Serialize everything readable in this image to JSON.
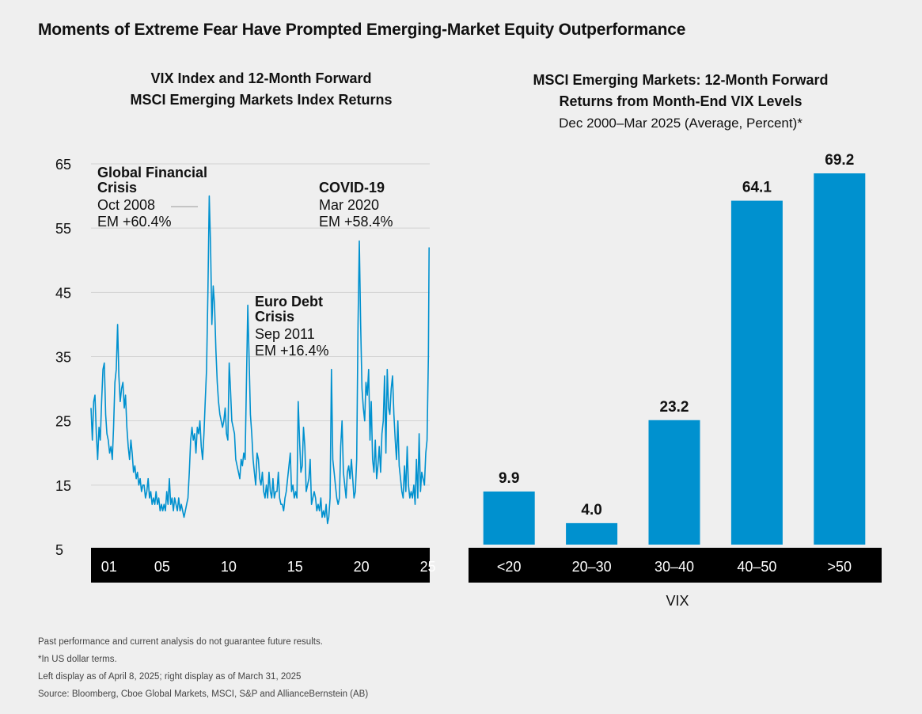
{
  "title": "Moments of Extreme Fear Have Prompted Emerging-Market Equity Outperformance",
  "left_panel": {
    "title_line1": "VIX Index and 12-Month Forward",
    "title_line2": "MSCI Emerging Markets Index Returns"
  },
  "right_panel": {
    "title_line1": "MSCI Emerging Markets: 12-Month Forward",
    "title_line2": "Returns from Month-End VIX Levels",
    "subtitle": "Dec 2000–Mar 2025 (Average, Percent)*"
  },
  "footnotes": [
    "Past performance and current analysis do not guarantee future results.",
    "*In US dollar terms.",
    "Left display as of April 8, 2025; right display as of March 31, 2025",
    "Source: Bloomberg, Cboe Global Markets, MSCI, S&P and AllianceBernstein (AB)"
  ],
  "colors": {
    "series": "#0091cf",
    "axis_band": "#000000",
    "background": "#efefef"
  },
  "chart_data": [
    {
      "type": "line",
      "series": [
        {
          "name": ""
        }
      ],
      "ylim": [
        5,
        65
      ],
      "yticks": [
        "65",
        "55",
        "45",
        "35",
        "25",
        "15",
        "5"
      ],
      "xlim": [
        2000.0,
        2025.5
      ],
      "xticks": [
        {
          "label": "01",
          "value": 2001
        },
        {
          "label": "05",
          "value": 2005
        },
        {
          "label": "10",
          "value": 2010
        },
        {
          "label": "15",
          "value": 2015
        },
        {
          "label": "20",
          "value": 2020
        },
        {
          "label": "25",
          "value": 2025
        }
      ],
      "grid": true,
      "annotations": [
        {
          "title_lines": [
            "Global Financial",
            "Crisis"
          ],
          "date": "Oct 2008",
          "value": "EM +60.4%"
        },
        {
          "title_lines": [
            "COVID-19"
          ],
          "date": "Mar 2020",
          "value": "EM +58.4%"
        },
        {
          "title_lines": [
            "Euro Debt",
            "Crisis"
          ],
          "date": "Sep 2011",
          "value": "EM +16.4%"
        }
      ],
      "points": [
        [
          2000.0,
          27
        ],
        [
          2000.1,
          22
        ],
        [
          2000.2,
          28
        ],
        [
          2000.3,
          29
        ],
        [
          2000.4,
          23
        ],
        [
          2000.5,
          19
        ],
        [
          2000.6,
          24
        ],
        [
          2000.7,
          22
        ],
        [
          2000.8,
          28
        ],
        [
          2000.9,
          33
        ],
        [
          2001.0,
          34
        ],
        [
          2001.1,
          26
        ],
        [
          2001.2,
          23
        ],
        [
          2001.3,
          22
        ],
        [
          2001.4,
          20
        ],
        [
          2001.5,
          21
        ],
        [
          2001.6,
          19
        ],
        [
          2001.7,
          24
        ],
        [
          2001.8,
          31
        ],
        [
          2001.9,
          33
        ],
        [
          2002.0,
          40
        ],
        [
          2002.1,
          32
        ],
        [
          2002.2,
          28
        ],
        [
          2002.3,
          30
        ],
        [
          2002.4,
          31
        ],
        [
          2002.5,
          27
        ],
        [
          2002.6,
          29
        ],
        [
          2002.7,
          24
        ],
        [
          2002.8,
          21
        ],
        [
          2002.9,
          19
        ],
        [
          2003.0,
          22
        ],
        [
          2003.1,
          20
        ],
        [
          2003.2,
          17
        ],
        [
          2003.3,
          18
        ],
        [
          2003.4,
          16
        ],
        [
          2003.5,
          17
        ],
        [
          2003.6,
          15
        ],
        [
          2003.7,
          16
        ],
        [
          2003.8,
          14
        ],
        [
          2003.9,
          15
        ],
        [
          2004.0,
          15
        ],
        [
          2004.1,
          13
        ],
        [
          2004.2,
          14
        ],
        [
          2004.3,
          16
        ],
        [
          2004.4,
          13
        ],
        [
          2004.5,
          14
        ],
        [
          2004.6,
          12
        ],
        [
          2004.7,
          13
        ],
        [
          2004.8,
          12
        ],
        [
          2004.9,
          14
        ],
        [
          2005.0,
          12
        ],
        [
          2005.1,
          13
        ],
        [
          2005.2,
          11
        ],
        [
          2005.3,
          12
        ],
        [
          2005.4,
          11
        ],
        [
          2005.5,
          12
        ],
        [
          2005.6,
          11
        ],
        [
          2005.7,
          14
        ],
        [
          2005.8,
          12
        ],
        [
          2005.9,
          16
        ],
        [
          2006.0,
          12
        ],
        [
          2006.1,
          13
        ],
        [
          2006.2,
          11
        ],
        [
          2006.3,
          13
        ],
        [
          2006.4,
          12
        ],
        [
          2006.5,
          11
        ],
        [
          2006.6,
          13
        ],
        [
          2006.7,
          11
        ],
        [
          2006.8,
          12
        ],
        [
          2006.9,
          11
        ],
        [
          2007.0,
          10
        ],
        [
          2007.1,
          11
        ],
        [
          2007.2,
          12
        ],
        [
          2007.3,
          13
        ],
        [
          2007.4,
          17
        ],
        [
          2007.5,
          22
        ],
        [
          2007.6,
          24
        ],
        [
          2007.7,
          22
        ],
        [
          2007.8,
          23
        ],
        [
          2007.9,
          20
        ],
        [
          2008.0,
          24
        ],
        [
          2008.1,
          23
        ],
        [
          2008.2,
          25
        ],
        [
          2008.3,
          21
        ],
        [
          2008.4,
          19
        ],
        [
          2008.5,
          23
        ],
        [
          2008.6,
          28
        ],
        [
          2008.7,
          33
        ],
        [
          2008.8,
          45
        ],
        [
          2008.9,
          60
        ],
        [
          2009.0,
          52
        ],
        [
          2009.1,
          40
        ],
        [
          2009.2,
          46
        ],
        [
          2009.3,
          43
        ],
        [
          2009.4,
          36
        ],
        [
          2009.5,
          31
        ],
        [
          2009.6,
          28
        ],
        [
          2009.7,
          26
        ],
        [
          2009.8,
          25
        ],
        [
          2009.9,
          24
        ],
        [
          2010.0,
          25
        ],
        [
          2010.1,
          27
        ],
        [
          2010.2,
          23
        ],
        [
          2010.3,
          22
        ],
        [
          2010.4,
          34
        ],
        [
          2010.5,
          30
        ],
        [
          2010.6,
          25
        ],
        [
          2010.7,
          24
        ],
        [
          2010.8,
          23
        ],
        [
          2010.9,
          19
        ],
        [
          2011.0,
          18
        ],
        [
          2011.1,
          17
        ],
        [
          2011.2,
          16
        ],
        [
          2011.3,
          19
        ],
        [
          2011.4,
          18
        ],
        [
          2011.5,
          20
        ],
        [
          2011.6,
          19
        ],
        [
          2011.7,
          31
        ],
        [
          2011.8,
          43
        ],
        [
          2011.9,
          35
        ],
        [
          2012.0,
          26
        ],
        [
          2012.1,
          23
        ],
        [
          2012.2,
          19
        ],
        [
          2012.3,
          17
        ],
        [
          2012.4,
          15
        ],
        [
          2012.5,
          20
        ],
        [
          2012.6,
          19
        ],
        [
          2012.7,
          16
        ],
        [
          2012.8,
          15
        ],
        [
          2012.9,
          17
        ],
        [
          2013.0,
          14
        ],
        [
          2013.1,
          13
        ],
        [
          2013.2,
          15
        ],
        [
          2013.3,
          13
        ],
        [
          2013.4,
          17
        ],
        [
          2013.5,
          14
        ],
        [
          2013.6,
          13
        ],
        [
          2013.7,
          16
        ],
        [
          2013.8,
          13
        ],
        [
          2013.9,
          14
        ],
        [
          2014.0,
          14
        ],
        [
          2014.1,
          17
        ],
        [
          2014.2,
          13
        ],
        [
          2014.3,
          12
        ],
        [
          2014.4,
          12
        ],
        [
          2014.5,
          11
        ],
        [
          2014.6,
          13
        ],
        [
          2014.7,
          14
        ],
        [
          2014.8,
          16
        ],
        [
          2014.9,
          18
        ],
        [
          2015.0,
          20
        ],
        [
          2015.1,
          14
        ],
        [
          2015.2,
          15
        ],
        [
          2015.3,
          13
        ],
        [
          2015.4,
          14
        ],
        [
          2015.5,
          13
        ],
        [
          2015.6,
          28
        ],
        [
          2015.7,
          22
        ],
        [
          2015.8,
          17
        ],
        [
          2015.9,
          18
        ],
        [
          2016.0,
          24
        ],
        [
          2016.1,
          21
        ],
        [
          2016.2,
          14
        ],
        [
          2016.3,
          15
        ],
        [
          2016.4,
          16
        ],
        [
          2016.5,
          19
        ],
        [
          2016.6,
          12
        ],
        [
          2016.7,
          13
        ],
        [
          2016.8,
          14
        ],
        [
          2016.9,
          13
        ],
        [
          2017.0,
          11
        ],
        [
          2017.1,
          12
        ],
        [
          2017.2,
          11
        ],
        [
          2017.3,
          13
        ],
        [
          2017.4,
          10
        ],
        [
          2017.5,
          11
        ],
        [
          2017.6,
          10
        ],
        [
          2017.7,
          12
        ],
        [
          2017.8,
          9
        ],
        [
          2017.9,
          10
        ],
        [
          2018.0,
          13
        ],
        [
          2018.1,
          33
        ],
        [
          2018.2,
          19
        ],
        [
          2018.3,
          17
        ],
        [
          2018.4,
          15
        ],
        [
          2018.5,
          13
        ],
        [
          2018.6,
          12
        ],
        [
          2018.7,
          13
        ],
        [
          2018.8,
          21
        ],
        [
          2018.9,
          25
        ],
        [
          2019.0,
          17
        ],
        [
          2019.1,
          15
        ],
        [
          2019.2,
          13
        ],
        [
          2019.3,
          17
        ],
        [
          2019.4,
          18
        ],
        [
          2019.5,
          16
        ],
        [
          2019.6,
          19
        ],
        [
          2019.7,
          16
        ],
        [
          2019.8,
          13
        ],
        [
          2019.9,
          14
        ],
        [
          2020.0,
          19
        ],
        [
          2020.1,
          40
        ],
        [
          2020.2,
          53
        ],
        [
          2020.3,
          40
        ],
        [
          2020.4,
          30
        ],
        [
          2020.5,
          27
        ],
        [
          2020.6,
          25
        ],
        [
          2020.7,
          31
        ],
        [
          2020.8,
          29
        ],
        [
          2020.9,
          33
        ],
        [
          2021.0,
          22
        ],
        [
          2021.1,
          28
        ],
        [
          2021.2,
          19
        ],
        [
          2021.3,
          17
        ],
        [
          2021.4,
          22
        ],
        [
          2021.5,
          16
        ],
        [
          2021.6,
          18
        ],
        [
          2021.7,
          21
        ],
        [
          2021.8,
          17
        ],
        [
          2021.9,
          23
        ],
        [
          2022.0,
          25
        ],
        [
          2022.1,
          32
        ],
        [
          2022.2,
          20
        ],
        [
          2022.3,
          33
        ],
        [
          2022.4,
          27
        ],
        [
          2022.5,
          26
        ],
        [
          2022.6,
          30
        ],
        [
          2022.7,
          32
        ],
        [
          2022.8,
          26
        ],
        [
          2022.9,
          22
        ],
        [
          2023.0,
          19
        ],
        [
          2023.1,
          25
        ],
        [
          2023.2,
          18
        ],
        [
          2023.3,
          16
        ],
        [
          2023.4,
          14
        ],
        [
          2023.5,
          13
        ],
        [
          2023.6,
          18
        ],
        [
          2023.7,
          14
        ],
        [
          2023.8,
          21
        ],
        [
          2023.9,
          15
        ],
        [
          2024.0,
          13
        ],
        [
          2024.1,
          14
        ],
        [
          2024.2,
          13
        ],
        [
          2024.3,
          15
        ],
        [
          2024.4,
          12
        ],
        [
          2024.5,
          19
        ],
        [
          2024.6,
          13
        ],
        [
          2024.7,
          23
        ],
        [
          2024.8,
          14
        ],
        [
          2024.9,
          17
        ],
        [
          2025.0,
          16
        ],
        [
          2025.1,
          15
        ],
        [
          2025.2,
          20
        ],
        [
          2025.3,
          22
        ],
        [
          2025.4,
          35
        ],
        [
          2025.45,
          52
        ]
      ]
    },
    {
      "type": "bar",
      "categories": [
        "<20",
        "20–30",
        "30–40",
        "40–50",
        ">50"
      ],
      "values": [
        9.9,
        4.0,
        23.2,
        64.1,
        69.2
      ],
      "labels": [
        "9.9",
        "4.0",
        "23.2",
        "64.1",
        "69.2"
      ],
      "xlabel": "VIX",
      "ylim": [
        0,
        72
      ]
    }
  ]
}
